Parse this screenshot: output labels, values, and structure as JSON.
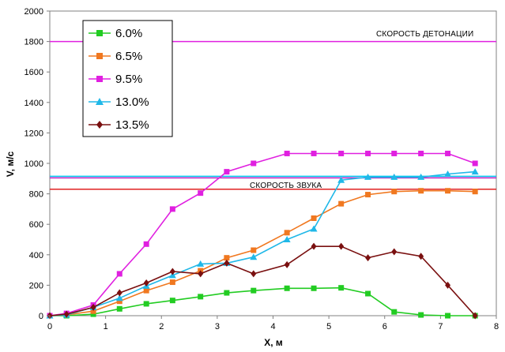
{
  "chart_data": {
    "type": "line",
    "xlabel": "X, м",
    "ylabel": "V, м/с",
    "xlim": [
      0,
      8
    ],
    "ylim": [
      0,
      2000
    ],
    "x_ticks": [
      "0",
      "1",
      "2",
      "3",
      "4",
      "5",
      "6",
      "7",
      "8"
    ],
    "y_ticks": [
      "0",
      "200",
      "400",
      "600",
      "800",
      "1000",
      "1200",
      "1400",
      "1600",
      "1800",
      "2000"
    ],
    "grid": false,
    "legend_position": "top-left",
    "reference_lines": [
      {
        "label": "СКОРОСТЬ ДЕТОНАЦИИ",
        "y": 1800,
        "color": "#e020e0"
      },
      {
        "label": "СКОРОСТЬ ЗВУКА",
        "y": 915,
        "color": "#00c8f0"
      },
      {
        "label": "",
        "y": 905,
        "color": "#c020c0"
      },
      {
        "label": "",
        "y": 830,
        "color": "#e02020"
      }
    ],
    "series": [
      {
        "name": "6.0%",
        "color": "#22cc22",
        "marker": "square",
        "x": [
          0,
          0.3,
          0.78,
          1.25,
          1.73,
          2.2,
          2.7,
          3.17,
          3.65,
          4.25,
          4.73,
          5.22,
          5.7,
          6.17,
          6.65,
          7.13,
          7.62
        ],
        "y": [
          0,
          0,
          10,
          45,
          78,
          100,
          125,
          150,
          165,
          180,
          180,
          183,
          145,
          25,
          5,
          0,
          0
        ]
      },
      {
        "name": "6.5%",
        "color": "#f07820",
        "marker": "square",
        "x": [
          0,
          0.3,
          0.78,
          1.25,
          1.73,
          2.2,
          2.7,
          3.17,
          3.65,
          4.25,
          4.73,
          5.22,
          5.7,
          6.17,
          6.65,
          7.13,
          7.62
        ],
        "y": [
          0,
          5,
          30,
          95,
          165,
          220,
          295,
          380,
          430,
          545,
          640,
          735,
          795,
          815,
          820,
          820,
          815
        ]
      },
      {
        "name": "9.5%",
        "color": "#e020e0",
        "marker": "square",
        "x": [
          0,
          0.3,
          0.78,
          1.25,
          1.73,
          2.2,
          2.7,
          3.17,
          3.65,
          4.25,
          4.73,
          5.22,
          5.7,
          6.17,
          6.65,
          7.13,
          7.62
        ],
        "y": [
          0,
          15,
          70,
          275,
          470,
          700,
          805,
          945,
          1000,
          1065,
          1065,
          1065,
          1065,
          1065,
          1065,
          1065,
          1000
        ]
      },
      {
        "name": "13.0%",
        "color": "#20b8e8",
        "marker": "triangle",
        "x": [
          0,
          0.3,
          0.78,
          1.25,
          1.73,
          2.2,
          2.7,
          3.17,
          3.65,
          4.25,
          4.73,
          5.22,
          5.7,
          6.17,
          6.65,
          7.13,
          7.62
        ],
        "y": [
          0,
          5,
          55,
          115,
          195,
          265,
          340,
          345,
          385,
          500,
          570,
          890,
          910,
          910,
          910,
          930,
          945
        ]
      },
      {
        "name": "13.5%",
        "color": "#7a1010",
        "marker": "diamond",
        "x": [
          0,
          0.3,
          0.78,
          1.25,
          1.73,
          2.2,
          2.7,
          3.17,
          3.65,
          4.25,
          4.73,
          5.22,
          5.7,
          6.17,
          6.65,
          7.13,
          7.62
        ],
        "y": [
          0,
          10,
          55,
          150,
          215,
          290,
          275,
          345,
          275,
          335,
          455,
          455,
          380,
          420,
          390,
          200,
          0
        ]
      }
    ]
  }
}
